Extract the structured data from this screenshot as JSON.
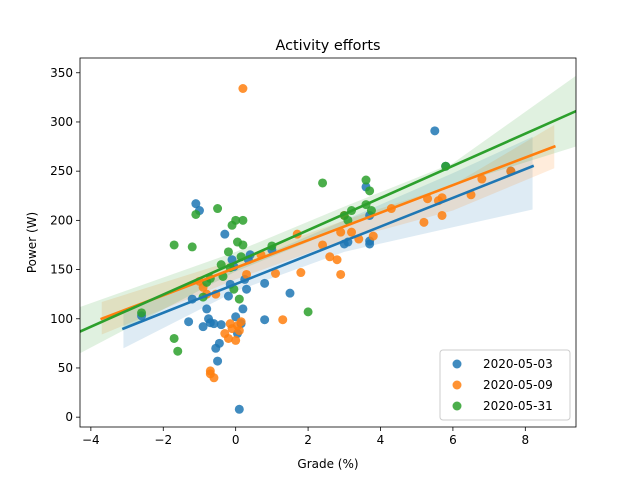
{
  "chart_data": {
    "type": "scatter",
    "title": "Activity efforts",
    "xlabel": "Grade (%)",
    "ylabel": "Power (W)",
    "xlim": [
      -4.3,
      9.4
    ],
    "ylim": [
      -10,
      365
    ],
    "xticks": [
      -4,
      -2,
      0,
      2,
      4,
      6,
      8
    ],
    "yticks": [
      0,
      50,
      100,
      150,
      200,
      250,
      300,
      350
    ],
    "grid": false,
    "legend_position": "lower-right",
    "series": [
      {
        "name": "2020-05-03",
        "color": "#1f77b4",
        "regression": {
          "x": [
            -3.1,
            8.2
          ],
          "y": [
            90,
            255
          ]
        },
        "ci": {
          "x": [
            -3.1,
            0,
            3,
            6,
            8.2
          ],
          "lower": [
            70,
            128,
            168,
            193,
            211
          ],
          "upper": [
            110,
            152,
            200,
            248,
            285
          ]
        },
        "points": [
          [
            -2.6,
            103
          ],
          [
            -1.3,
            97
          ],
          [
            -1.2,
            120
          ],
          [
            -1.1,
            217
          ],
          [
            -1.0,
            210
          ],
          [
            -0.9,
            92
          ],
          [
            -0.8,
            110
          ],
          [
            -0.75,
            100
          ],
          [
            -0.7,
            96
          ],
          [
            -0.6,
            95
          ],
          [
            -0.55,
            70
          ],
          [
            -0.5,
            57
          ],
          [
            -0.45,
            75
          ],
          [
            -0.4,
            94
          ],
          [
            -0.3,
            186
          ],
          [
            -0.2,
            123
          ],
          [
            -0.15,
            135
          ],
          [
            -0.1,
            160
          ],
          [
            -0.05,
            153
          ],
          [
            0.0,
            102
          ],
          [
            0.05,
            85
          ],
          [
            0.1,
            8
          ],
          [
            0.15,
            95
          ],
          [
            0.2,
            110
          ],
          [
            0.25,
            140
          ],
          [
            0.3,
            130
          ],
          [
            0.35,
            160
          ],
          [
            0.4,
            165
          ],
          [
            0.8,
            99
          ],
          [
            0.8,
            136
          ],
          [
            1.0,
            170
          ],
          [
            1.5,
            126
          ],
          [
            3.0,
            176
          ],
          [
            3.1,
            178
          ],
          [
            3.6,
            234
          ],
          [
            3.7,
            176
          ],
          [
            3.7,
            179
          ],
          [
            3.7,
            205
          ],
          [
            5.5,
            291
          ],
          [
            5.8,
            255
          ],
          [
            7.6,
            250
          ]
        ]
      },
      {
        "name": "2020-05-09",
        "color": "#ff7f0e",
        "regression": {
          "x": [
            -3.7,
            8.8
          ],
          "y": [
            100,
            275
          ]
        },
        "ci": {
          "x": [
            -3.7,
            0,
            3,
            6,
            8.8
          ],
          "lower": [
            84,
            140,
            180,
            210,
            253
          ],
          "upper": [
            117,
            160,
            200,
            236,
            297
          ]
        },
        "points": [
          [
            -1.0,
            138
          ],
          [
            -0.9,
            132
          ],
          [
            -0.8,
            125
          ],
          [
            -0.7,
            47
          ],
          [
            -0.7,
            44
          ],
          [
            -0.6,
            40
          ],
          [
            -0.55,
            125
          ],
          [
            -0.3,
            85
          ],
          [
            -0.2,
            80
          ],
          [
            -0.15,
            95
          ],
          [
            -0.1,
            90
          ],
          [
            0.0,
            78
          ],
          [
            0.05,
            93
          ],
          [
            0.1,
            88
          ],
          [
            0.15,
            97
          ],
          [
            0.2,
            334
          ],
          [
            0.3,
            145
          ],
          [
            0.7,
            165
          ],
          [
            1.1,
            146
          ],
          [
            1.3,
            99
          ],
          [
            1.7,
            186
          ],
          [
            1.8,
            147
          ],
          [
            2.4,
            175
          ],
          [
            2.6,
            163
          ],
          [
            2.8,
            160
          ],
          [
            2.9,
            145
          ],
          [
            2.9,
            188
          ],
          [
            3.0,
            205
          ],
          [
            3.2,
            188
          ],
          [
            3.4,
            181
          ],
          [
            3.8,
            184
          ],
          [
            4.3,
            212
          ],
          [
            5.2,
            198
          ],
          [
            5.3,
            222
          ],
          [
            5.6,
            220
          ],
          [
            5.7,
            223
          ],
          [
            5.7,
            205
          ],
          [
            6.5,
            226
          ],
          [
            6.8,
            242
          ],
          [
            7.6,
            250
          ]
        ]
      },
      {
        "name": "2020-05-31",
        "color": "#2ca02c",
        "regression": {
          "x": [
            -4.3,
            9.4
          ],
          "y": [
            87,
            311
          ]
        },
        "ci": {
          "x": [
            -4.3,
            0,
            3,
            6,
            9.4
          ],
          "lower": [
            65,
            148,
            193,
            236,
            275
          ],
          "upper": [
            112,
            168,
            214,
            258,
            347
          ]
        },
        "points": [
          [
            -2.6,
            106
          ],
          [
            -1.7,
            175
          ],
          [
            -1.7,
            80
          ],
          [
            -1.6,
            67
          ],
          [
            -1.2,
            173
          ],
          [
            -1.1,
            206
          ],
          [
            -0.9,
            122
          ],
          [
            -0.8,
            137
          ],
          [
            -0.7,
            141
          ],
          [
            -0.5,
            212
          ],
          [
            -0.4,
            155
          ],
          [
            -0.35,
            143
          ],
          [
            -0.2,
            168
          ],
          [
            -0.15,
            152
          ],
          [
            -0.1,
            195
          ],
          [
            -0.05,
            130
          ],
          [
            0.0,
            200
          ],
          [
            0.05,
            178
          ],
          [
            0.1,
            120
          ],
          [
            0.15,
            163
          ],
          [
            0.2,
            200
          ],
          [
            0.2,
            175
          ],
          [
            1.0,
            174
          ],
          [
            2.0,
            107
          ],
          [
            2.4,
            238
          ],
          [
            3.0,
            205
          ],
          [
            3.1,
            200
          ],
          [
            3.2,
            210
          ],
          [
            3.6,
            241
          ],
          [
            3.6,
            216
          ],
          [
            3.7,
            230
          ],
          [
            3.75,
            210
          ],
          [
            5.8,
            255
          ]
        ]
      }
    ]
  }
}
